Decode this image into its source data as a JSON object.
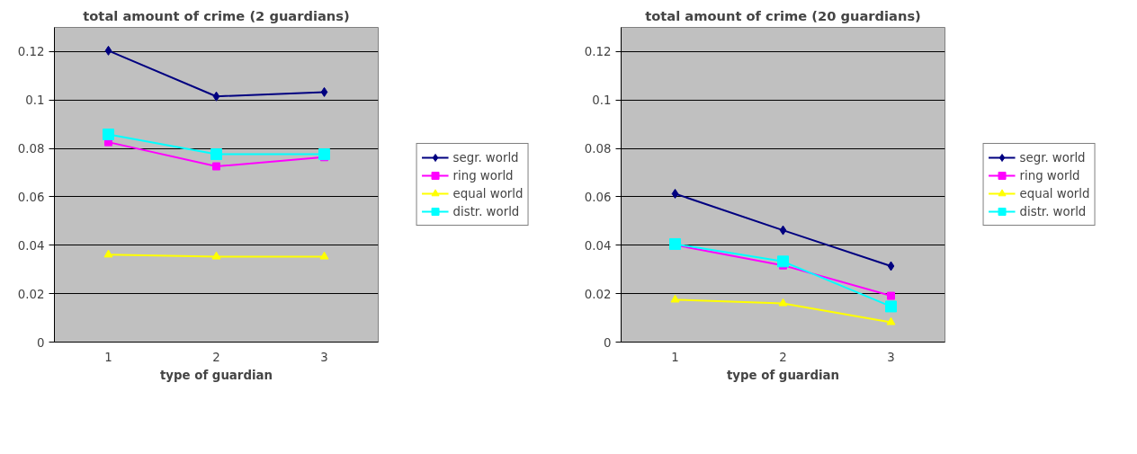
{
  "chart_data": [
    {
      "type": "line",
      "title": "total amount of crime (2 guardians)",
      "xlabel": "type of guardian",
      "categories": [
        "1",
        "2",
        "3"
      ],
      "ylim": [
        0,
        0.13
      ],
      "yticks": [
        0,
        0.02,
        0.04,
        0.06,
        0.08,
        {
          "value": 0.1,
          "label": "0.1"
        },
        0.12
      ],
      "grid": "y",
      "legend": "right",
      "series": [
        {
          "name": "segr. world",
          "color": "#000080",
          "marker": "diamond",
          "values": [
            0.1204,
            0.1015,
            0.1033
          ]
        },
        {
          "name": "ring world",
          "color": "#ff00ff",
          "marker": "square",
          "values": [
            0.0826,
            0.0726,
            0.0764
          ]
        },
        {
          "name": "equal world",
          "color": "#ffff00",
          "marker": "triangle",
          "values": [
            0.0361,
            0.0353,
            0.0353
          ]
        },
        {
          "name": "distr. world",
          "color": "#00ffff",
          "marker": "square",
          "values": [
            0.0858,
            0.0776,
            0.0776
          ]
        }
      ]
    },
    {
      "type": "line",
      "title": "total amount of crime (20 guardians)",
      "xlabel": "type of guardian",
      "categories": [
        "1",
        "2",
        "3"
      ],
      "ylim": [
        0,
        0.13
      ],
      "yticks": [
        0,
        0.02,
        0.04,
        0.06,
        0.08,
        {
          "value": 0.1,
          "label": "0.1"
        },
        0.12
      ],
      "grid": "y",
      "legend": "right",
      "series": [
        {
          "name": "segr. world",
          "color": "#000080",
          "marker": "diamond",
          "values": [
            0.0613,
            0.0462,
            0.0314
          ]
        },
        {
          "name": "ring world",
          "color": "#ff00ff",
          "marker": "square",
          "values": [
            0.0401,
            0.0317,
            0.0191
          ]
        },
        {
          "name": "equal world",
          "color": "#ffff00",
          "marker": "triangle",
          "values": [
            0.0175,
            0.016,
            0.0082
          ]
        },
        {
          "name": "distr. world",
          "color": "#00ffff",
          "marker": "square",
          "values": [
            0.0405,
            0.0333,
            0.0147
          ]
        }
      ]
    }
  ]
}
